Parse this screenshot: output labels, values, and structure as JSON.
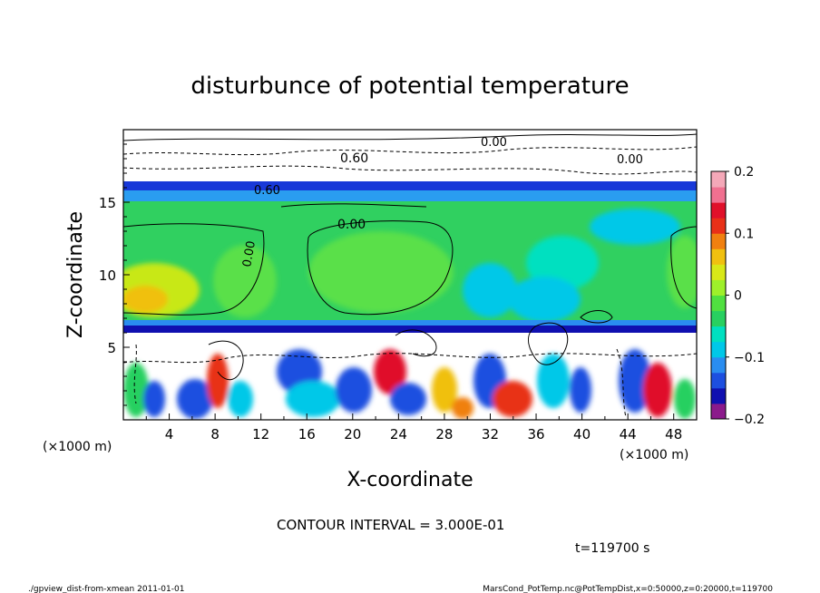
{
  "chart_data": {
    "type": "heatmap",
    "title": "disturbunce of potential temperature",
    "xlabel": "X-coordinate",
    "ylabel": "Z-coordinate",
    "x_unit": "(×1000 m)",
    "y_unit": "(×1000 m)",
    "xlim": [
      0,
      50
    ],
    "ylim": [
      0,
      20
    ],
    "x_ticks": [
      4,
      8,
      12,
      16,
      20,
      24,
      28,
      32,
      36,
      40,
      44,
      48
    ],
    "y_ticks": [
      5,
      10,
      15
    ],
    "colorbar": {
      "min": -0.2,
      "max": 0.2,
      "ticks": [
        0.2,
        0.1,
        0,
        -0.1,
        -0.2
      ],
      "tick_labels": [
        "0.2",
        "0.1",
        "0",
        "−0.1",
        "−0.2"
      ],
      "colors": [
        "#8b1a8b",
        "#1010b0",
        "#1d4fe0",
        "#2a8df0",
        "#00c8e8",
        "#00e0c0",
        "#28d060",
        "#50e040",
        "#9ef02a",
        "#d8e818",
        "#f0c010",
        "#f08010",
        "#e83018",
        "#e0102a",
        "#f07090",
        "#f4a8b8"
      ]
    },
    "contour_labels": [
      "0.00",
      "0.00",
      "0.60",
      "0.60",
      "0.00",
      "0.00"
    ],
    "contour_interval": "CONTOUR INTERVAL = 3.000E-01",
    "time": "t=119700 s"
  },
  "footer": {
    "left": "./gpview_dist-from-xmean  2011-01-01",
    "right": "MarsCond_PotTemp.nc@PotTempDist,x=0:50000,z=0:20000,t=119700"
  }
}
